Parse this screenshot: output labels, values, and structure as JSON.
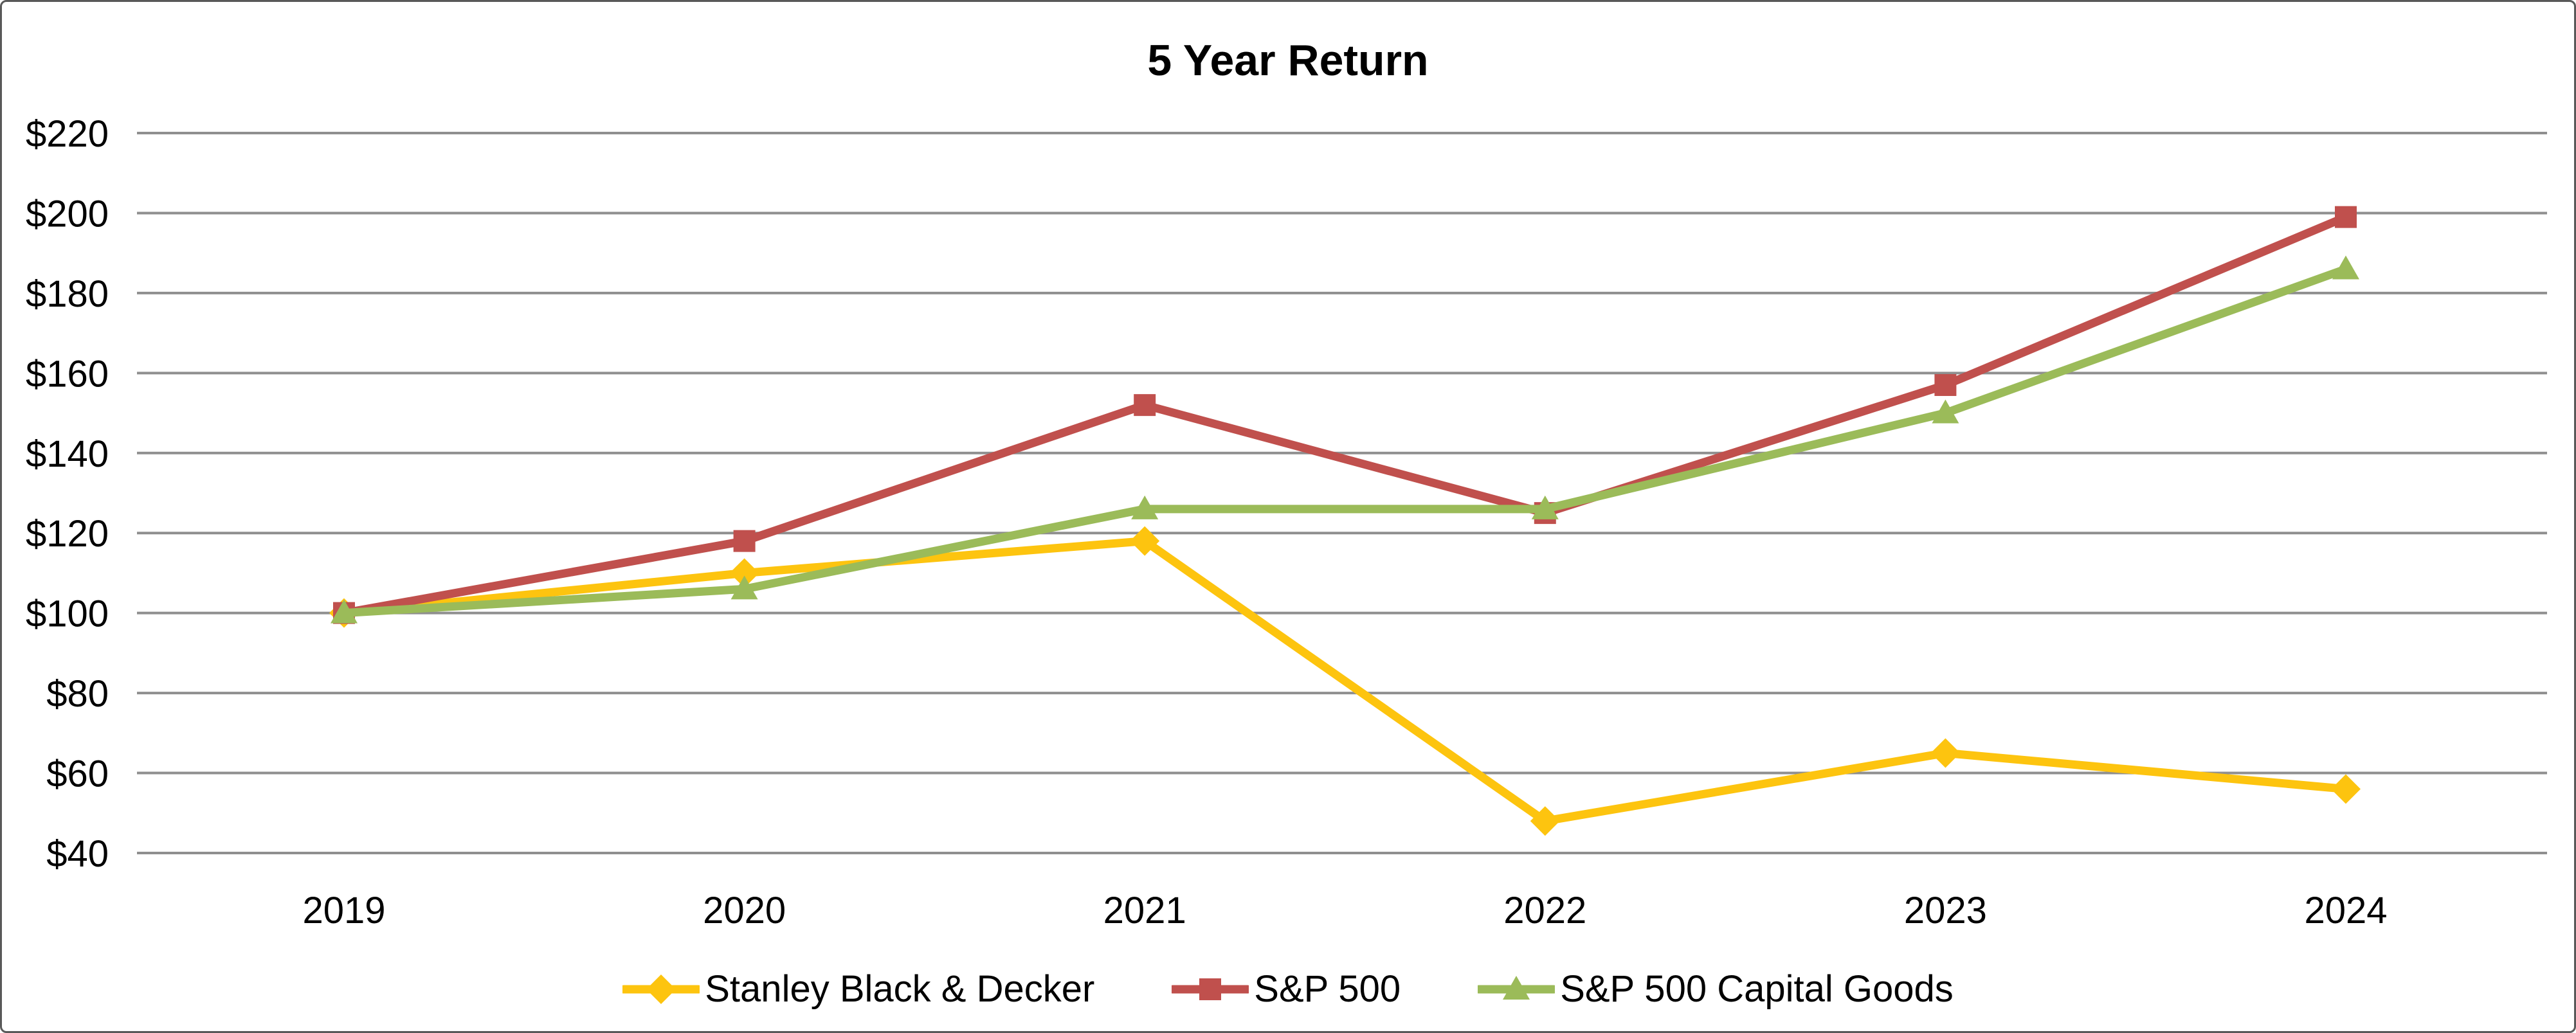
{
  "chart_data": {
    "type": "line",
    "title": "5 Year Return",
    "categories": [
      "2019",
      "2020",
      "2021",
      "2022",
      "2023",
      "2024"
    ],
    "series": [
      {
        "name": "Stanley Black & Decker",
        "marker": "diamond",
        "color": "#FDC40F",
        "values": [
          100,
          110,
          118,
          48,
          65,
          56
        ]
      },
      {
        "name": "S&P 500",
        "marker": "square",
        "color": "#C0504D",
        "values": [
          100,
          118,
          152,
          125,
          157,
          199
        ]
      },
      {
        "name": "S&P 500 Capital Goods",
        "marker": "triangle",
        "color": "#9BBB59",
        "values": [
          100,
          106,
          126,
          126,
          150,
          186
        ]
      }
    ],
    "y_axis": {
      "min": 40,
      "max": 220,
      "step": 20,
      "tick_prefix": "$",
      "tick_labels": [
        "$40",
        "$60",
        "$80",
        "$100",
        "$120",
        "$140",
        "$160",
        "$180",
        "$200",
        "$220"
      ]
    },
    "xlabel": "",
    "ylabel": "",
    "grid": "horizontal",
    "legend_position": "bottom",
    "colors": {
      "gridline": "#8F8F8F",
      "frame_border": "#595959",
      "text": "#000000",
      "background": "#FFFFFF"
    }
  }
}
